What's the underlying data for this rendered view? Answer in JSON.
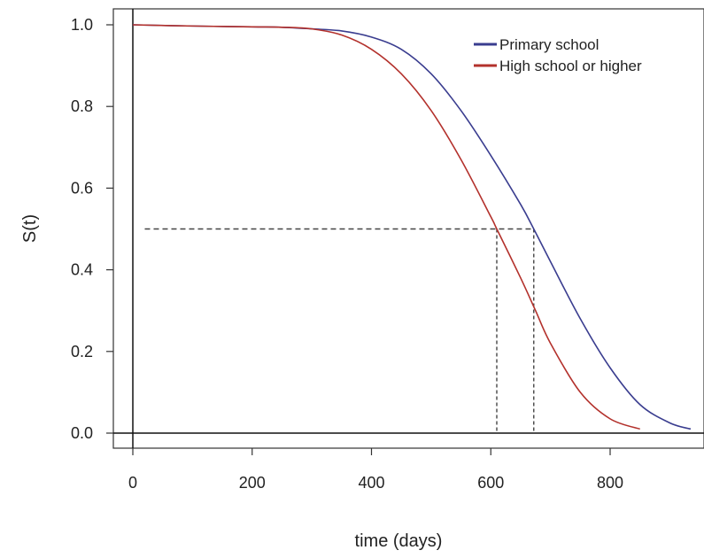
{
  "chart_data": {
    "type": "line",
    "xlabel": "time (days)",
    "ylabel": "S(t)",
    "xlim": [
      -35,
      945
    ],
    "ylim": [
      -0.04,
      1.04
    ],
    "xticks": [
      0,
      200,
      400,
      600,
      800
    ],
    "yticks": [
      0.0,
      0.2,
      0.4,
      0.6,
      0.8,
      1.0
    ],
    "xtick_labels": [
      "0",
      "200",
      "400",
      "600",
      "800"
    ],
    "ytick_labels": [
      "0.0",
      "0.2",
      "0.4",
      "0.6",
      "0.8",
      "1.0"
    ],
    "grid": false,
    "legend_position": "top-right",
    "series": [
      {
        "name": "Primary school",
        "color": "#3a3d8f",
        "x": [
          0,
          100,
          200,
          250,
          300,
          350,
          400,
          450,
          500,
          550,
          600,
          650,
          672,
          700,
          750,
          800,
          850,
          900,
          935
        ],
        "y": [
          1.0,
          0.997,
          0.995,
          0.994,
          0.99,
          0.985,
          0.97,
          0.94,
          0.88,
          0.79,
          0.68,
          0.56,
          0.5,
          0.42,
          0.28,
          0.16,
          0.07,
          0.025,
          0.01
        ]
      },
      {
        "name": "High school or higher",
        "color": "#b3312c",
        "x": [
          0,
          100,
          200,
          250,
          300,
          350,
          400,
          450,
          500,
          550,
          600,
          610,
          650,
          675,
          700,
          750,
          800,
          850
        ],
        "y": [
          1.0,
          0.997,
          0.995,
          0.994,
          0.99,
          0.975,
          0.94,
          0.88,
          0.79,
          0.67,
          0.53,
          0.5,
          0.38,
          0.3,
          0.22,
          0.1,
          0.035,
          0.01
        ]
      }
    ],
    "reference_lines": {
      "horizontal_y": 0.5,
      "vertical_x": [
        610,
        672
      ]
    }
  }
}
